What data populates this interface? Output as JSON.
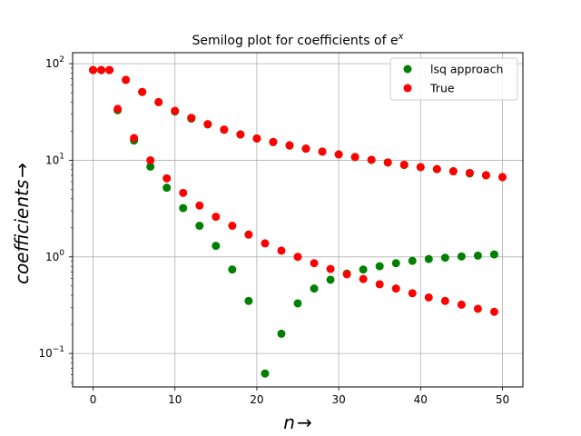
{
  "chart_data": {
    "type": "scatter",
    "title": "Semilog plot for coefficients of e",
    "title_superscript": "x",
    "xlabel": "n",
    "xlabel_arrow": "→",
    "ylabel": "coefficients",
    "ylabel_arrow": "→",
    "yscale": "log",
    "xlim": [
      -2.5,
      52.5
    ],
    "ylim": [
      0.045,
      130
    ],
    "x_ticks": [
      0,
      10,
      20,
      30,
      40,
      50
    ],
    "y_ticks": [
      {
        "value": 0.1,
        "mantissa": "10",
        "exponent": "−1"
      },
      {
        "value": 1,
        "mantissa": "10",
        "exponent": "0"
      },
      {
        "value": 10,
        "mantissa": "10",
        "exponent": "1"
      },
      {
        "value": 100,
        "mantissa": "10",
        "exponent": "2"
      }
    ],
    "grid": true,
    "legend_position": "upper-right",
    "series": [
      {
        "name": "lsq approach",
        "color": "#008000",
        "points": [
          [
            0,
            86
          ],
          [
            1,
            86
          ],
          [
            2,
            86
          ],
          [
            3,
            33
          ],
          [
            4,
            68
          ],
          [
            5,
            16
          ],
          [
            6,
            51
          ],
          [
            7,
            8.6
          ],
          [
            8,
            40
          ],
          [
            9,
            5.2
          ],
          [
            10,
            32
          ],
          [
            11,
            3.2
          ],
          [
            12,
            27
          ],
          [
            13,
            2.1
          ],
          [
            14,
            23.5
          ],
          [
            15,
            1.3
          ],
          [
            16,
            20.7
          ],
          [
            17,
            0.74
          ],
          [
            18,
            18.5
          ],
          [
            19,
            0.35
          ],
          [
            20,
            16.8
          ],
          [
            21,
            0.062
          ],
          [
            22,
            15.4
          ],
          [
            23,
            0.16
          ],
          [
            24,
            14.2
          ],
          [
            25,
            0.33
          ],
          [
            26,
            13.2
          ],
          [
            27,
            0.47
          ],
          [
            28,
            12.3
          ],
          [
            29,
            0.58
          ],
          [
            30,
            11.5
          ],
          [
            31,
            0.67
          ],
          [
            32,
            10.8
          ],
          [
            33,
            0.74
          ],
          [
            34,
            10.1
          ],
          [
            35,
            0.8
          ],
          [
            36,
            9.5
          ],
          [
            37,
            0.86
          ],
          [
            38,
            8.95
          ],
          [
            39,
            0.91
          ],
          [
            40,
            8.5
          ],
          [
            41,
            0.95
          ],
          [
            42,
            8.1
          ],
          [
            43,
            0.98
          ],
          [
            44,
            7.7
          ],
          [
            45,
            1.01
          ],
          [
            46,
            7.3
          ],
          [
            47,
            1.03
          ],
          [
            48,
            7.0
          ],
          [
            49,
            1.06
          ],
          [
            50,
            6.7
          ]
        ]
      },
      {
        "name": "True",
        "color": "#ff0000",
        "points": [
          [
            0,
            86
          ],
          [
            1,
            86
          ],
          [
            2,
            86
          ],
          [
            3,
            34
          ],
          [
            4,
            68
          ],
          [
            5,
            17
          ],
          [
            6,
            51
          ],
          [
            7,
            10
          ],
          [
            8,
            40
          ],
          [
            9,
            6.5
          ],
          [
            10,
            32.5
          ],
          [
            11,
            4.6
          ],
          [
            12,
            27.5
          ],
          [
            13,
            3.4
          ],
          [
            14,
            23.7
          ],
          [
            15,
            2.6
          ],
          [
            16,
            20.8
          ],
          [
            17,
            2.1
          ],
          [
            18,
            18.5
          ],
          [
            19,
            1.7
          ],
          [
            20,
            16.8
          ],
          [
            21,
            1.38
          ],
          [
            22,
            15.5
          ],
          [
            23,
            1.16
          ],
          [
            24,
            14.3
          ],
          [
            25,
            1.0
          ],
          [
            26,
            13.2
          ],
          [
            27,
            0.86
          ],
          [
            28,
            12.3
          ],
          [
            29,
            0.75
          ],
          [
            30,
            11.5
          ],
          [
            31,
            0.66
          ],
          [
            32,
            10.8
          ],
          [
            33,
            0.59
          ],
          [
            34,
            10.1
          ],
          [
            35,
            0.52
          ],
          [
            36,
            9.5
          ],
          [
            37,
            0.47
          ],
          [
            38,
            9.0
          ],
          [
            39,
            0.42
          ],
          [
            40,
            8.5
          ],
          [
            41,
            0.38
          ],
          [
            42,
            8.1
          ],
          [
            43,
            0.35
          ],
          [
            44,
            7.7
          ],
          [
            45,
            0.32
          ],
          [
            46,
            7.4
          ],
          [
            47,
            0.29
          ],
          [
            48,
            7.0
          ],
          [
            49,
            0.27
          ],
          [
            50,
            6.7
          ]
        ]
      }
    ]
  }
}
